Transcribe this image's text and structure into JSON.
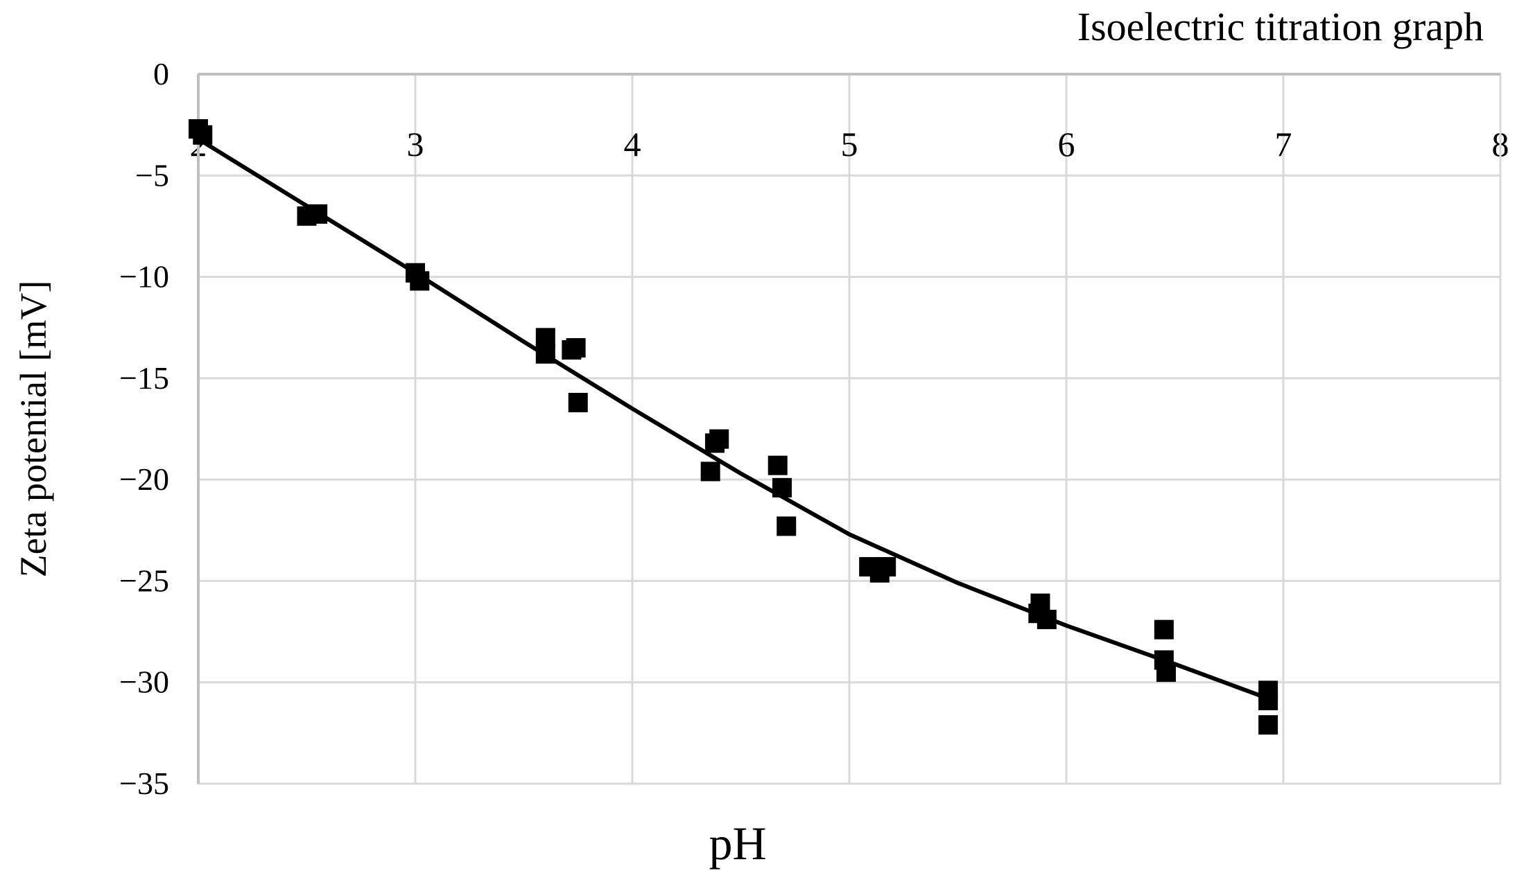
{
  "chart_data": {
    "type": "scatter",
    "title": "Isoelectric titration graph",
    "x_label": "pH",
    "y_label": "Zeta potential [mV]",
    "xlim": [
      2,
      8
    ],
    "xticks": [
      2,
      3,
      4,
      5,
      6,
      7,
      8
    ],
    "ylim": [
      -35,
      0
    ],
    "yticks": [
      0,
      {
        "value": -5,
        "label": "−5"
      },
      {
        "value": -10,
        "label": "−10"
      },
      {
        "value": -15,
        "label": "−15"
      },
      {
        "value": -20,
        "label": "−20"
      },
      {
        "value": -25,
        "label": "−25"
      },
      {
        "value": -30,
        "label": "−30"
      },
      {
        "value": -35,
        "label": "−35"
      }
    ],
    "grid": true,
    "series": [
      {
        "mode": "markers",
        "color": "#000000",
        "x": [
          2.0,
          2.02,
          2.5,
          2.55,
          3.0,
          3.02,
          3.6,
          3.6,
          3.72,
          3.74,
          3.75,
          4.36,
          4.38,
          4.4,
          4.67,
          4.69,
          4.71,
          5.09,
          5.14,
          5.17,
          5.87,
          5.88,
          5.91,
          6.45,
          6.45,
          6.46,
          6.93,
          6.93,
          6.93
        ],
        "values": [
          -2.7,
          -3.0,
          -7.0,
          -6.9,
          -9.8,
          -10.2,
          -13.0,
          -13.8,
          -13.6,
          -13.5,
          -16.2,
          -19.6,
          -18.2,
          -18.0,
          -19.3,
          -20.4,
          -22.3,
          -24.3,
          -24.6,
          -24.3,
          -26.6,
          -26.1,
          -26.9,
          -27.4,
          -28.9,
          -29.5,
          -30.4,
          -30.9,
          -32.1
        ]
      },
      {
        "mode": "line",
        "color": "#000000",
        "x": [
          2,
          2.5,
          3,
          3.5,
          4,
          4.5,
          5,
          5.5,
          6,
          6.5,
          6.93
        ],
        "values": [
          -3.2,
          -6.5,
          -9.8,
          -13.2,
          -16.5,
          -19.7,
          -22.7,
          -25.1,
          -27.2,
          -29.1,
          -30.8
        ]
      }
    ]
  }
}
